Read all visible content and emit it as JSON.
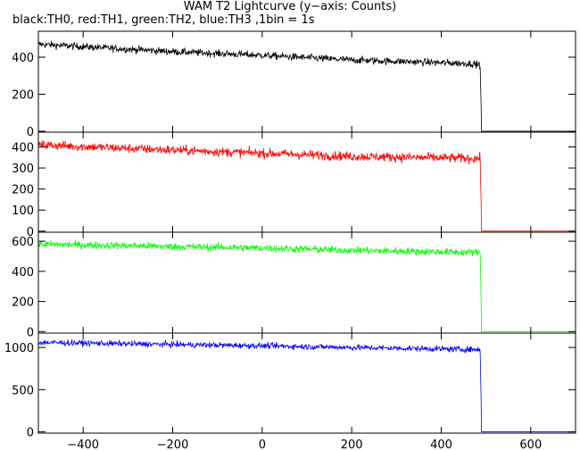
{
  "header": {
    "title": "WAM T2 Lightcurve (y−axis: Counts)",
    "subtitle": "black:TH0, red:TH1, green:TH2, blue:TH3 ,1bin = 1s"
  },
  "chart_data": [
    {
      "type": "line",
      "name": "TH0",
      "color": "#000000",
      "xlim": [
        -500,
        700
      ],
      "ylim": [
        -5,
        540
      ],
      "yticks": [
        0,
        200,
        400
      ],
      "step": 1,
      "trend": [
        [
          -500,
          470
        ],
        [
          -200,
          430
        ],
        [
          0,
          410
        ],
        [
          200,
          385
        ],
        [
          470,
          365
        ],
        [
          483,
          360
        ]
      ],
      "noise": 14,
      "dropTo": 0,
      "x_end": 487
    },
    {
      "type": "line",
      "name": "TH1",
      "color": "#ff0000",
      "xlim": [
        -500,
        700
      ],
      "ylim": [
        -5,
        470
      ],
      "yticks": [
        0,
        100,
        200,
        300,
        400
      ],
      "step": 1,
      "trend": [
        [
          -500,
          410
        ],
        [
          -200,
          385
        ],
        [
          0,
          370
        ],
        [
          200,
          355
        ],
        [
          483,
          345
        ]
      ],
      "noise": 16,
      "dropTo": 0,
      "x_end": 487
    },
    {
      "type": "line",
      "name": "TH2",
      "color": "#00ff00",
      "xlim": [
        -500,
        700
      ],
      "ylim": [
        -10,
        660
      ],
      "yticks": [
        0,
        200,
        400,
        600
      ],
      "step": 1,
      "trend": [
        [
          -500,
          580
        ],
        [
          -200,
          565
        ],
        [
          0,
          555
        ],
        [
          200,
          540
        ],
        [
          483,
          525
        ]
      ],
      "noise": 18,
      "dropTo": 0,
      "x_end": 487
    },
    {
      "type": "line",
      "name": "TH3",
      "color": "#0000ff",
      "xlim": [
        -500,
        700
      ],
      "ylim": [
        -15,
        1170
      ],
      "yticks": [
        0,
        500,
        1000
      ],
      "step": 1,
      "trend": [
        [
          -500,
          1060
        ],
        [
          -200,
          1035
        ],
        [
          0,
          1020
        ],
        [
          200,
          1000
        ],
        [
          483,
          975
        ]
      ],
      "noise": 25,
      "dropTo": 0,
      "x_end": 487
    }
  ],
  "x_axis": {
    "ticks": [
      -400,
      -200,
      0,
      200,
      400,
      600
    ],
    "tick_labels": [
      "−400",
      "−200",
      "0",
      "200",
      "400",
      "600"
    ]
  }
}
